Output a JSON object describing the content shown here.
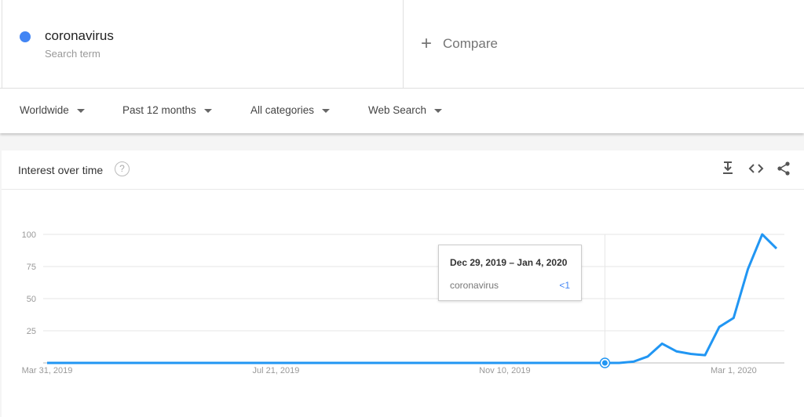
{
  "search_term": {
    "name": "coronavirus",
    "subtitle": "Search term",
    "color": "#4285f4"
  },
  "compare": {
    "icon": "plus-icon",
    "label": "Compare"
  },
  "filters": [
    {
      "label": "Worldwide"
    },
    {
      "label": "Past 12 months"
    },
    {
      "label": "All categories"
    },
    {
      "label": "Web Search"
    }
  ],
  "card": {
    "title": "Interest over time",
    "help_icon": "help-circle-icon",
    "actions": [
      "download-icon",
      "embed-code-icon",
      "share-icon"
    ]
  },
  "tooltip": {
    "date": "Dec 29, 2019 – Jan 4, 2020",
    "term": "coronavirus",
    "value": "<1"
  },
  "chart_data": {
    "type": "line",
    "xlabel": "",
    "ylabel": "",
    "ylim": [
      0,
      100
    ],
    "yticks": [
      25,
      50,
      75,
      100
    ],
    "xtick_labels": [
      {
        "date": "2019-03-31",
        "label": "Mar 31, 2019"
      },
      {
        "date": "2019-07-21",
        "label": "Jul 21, 2019"
      },
      {
        "date": "2019-11-10",
        "label": "Nov 10, 2019"
      },
      {
        "date": "2020-03-01",
        "label": "Mar 1, 2020"
      }
    ],
    "grid": true,
    "color": "#2196f3",
    "highlight_date": "2019-12-29",
    "x": [
      "2019-03-31",
      "2019-04-07",
      "2019-04-14",
      "2019-04-21",
      "2019-04-28",
      "2019-05-05",
      "2019-05-12",
      "2019-05-19",
      "2019-05-26",
      "2019-06-02",
      "2019-06-09",
      "2019-06-16",
      "2019-06-23",
      "2019-06-30",
      "2019-07-07",
      "2019-07-14",
      "2019-07-21",
      "2019-07-28",
      "2019-08-04",
      "2019-08-11",
      "2019-08-18",
      "2019-08-25",
      "2019-09-01",
      "2019-09-08",
      "2019-09-15",
      "2019-09-22",
      "2019-09-29",
      "2019-10-06",
      "2019-10-13",
      "2019-10-20",
      "2019-10-27",
      "2019-11-03",
      "2019-11-10",
      "2019-11-17",
      "2019-11-24",
      "2019-12-01",
      "2019-12-08",
      "2019-12-15",
      "2019-12-22",
      "2019-12-29",
      "2020-01-05",
      "2020-01-12",
      "2020-01-19",
      "2020-01-26",
      "2020-02-02",
      "2020-02-09",
      "2020-02-16",
      "2020-02-23",
      "2020-03-01",
      "2020-03-08",
      "2020-03-15",
      "2020-03-22"
    ],
    "series": [
      {
        "name": "coronavirus",
        "values": [
          0,
          0,
          0,
          0,
          0,
          0,
          0,
          0,
          0,
          0,
          0,
          0,
          0,
          0,
          0,
          0,
          0,
          0,
          0,
          0,
          0,
          0,
          0,
          0,
          0,
          0,
          0,
          0,
          0,
          0,
          0,
          0,
          0,
          0,
          0,
          0,
          0,
          0,
          0,
          0,
          0,
          1,
          5,
          15,
          9,
          7,
          6,
          28,
          35,
          73,
          100,
          89
        ]
      }
    ]
  }
}
